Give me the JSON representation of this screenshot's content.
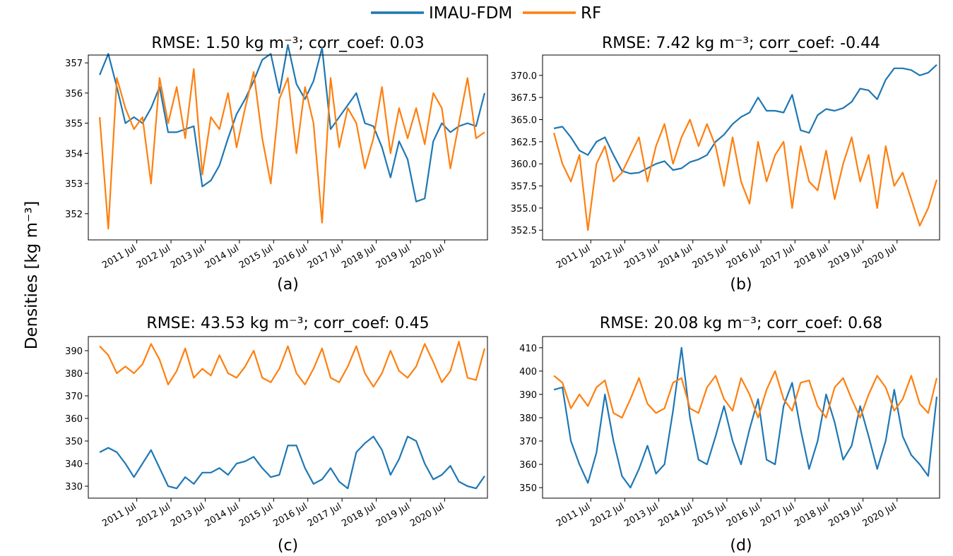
{
  "ylabel": "Densities [kg m⁻³]",
  "chart_data": [
    {
      "type": "line",
      "title": "RMSE: 1.50 kg m⁻³; corr_coef: 0.03",
      "caption": "(a)",
      "x": [
        "2010-06",
        "2010-09",
        "2010-12",
        "2011-03",
        "2011-06",
        "2011-09",
        "2011-12",
        "2012-03",
        "2012-06",
        "2012-09",
        "2012-12",
        "2013-03",
        "2013-06",
        "2013-09",
        "2013-12",
        "2014-03",
        "2014-06",
        "2014-09",
        "2014-12",
        "2015-03",
        "2015-06",
        "2015-09",
        "2015-12",
        "2016-03",
        "2016-06",
        "2016-09",
        "2016-12",
        "2017-03",
        "2017-06",
        "2017-09",
        "2017-12",
        "2018-03",
        "2018-06",
        "2018-09",
        "2018-12",
        "2019-03",
        "2019-06",
        "2019-09",
        "2019-12",
        "2020-03",
        "2020-06",
        "2020-09",
        "2020-12",
        "2021-03",
        "2021-06",
        "2021-09"
      ],
      "xlim": [
        "2010-02",
        "2021-10"
      ],
      "xticks": [
        {
          "value": "2011-07",
          "label": "2011 Jul"
        },
        {
          "value": "2012-07",
          "label": "2012 Jul"
        },
        {
          "value": "2013-07",
          "label": "2013 Jul"
        },
        {
          "value": "2014-07",
          "label": "2014 Jul"
        },
        {
          "value": "2015-07",
          "label": "2015 Jul"
        },
        {
          "value": "2016-07",
          "label": "2016 Jul"
        },
        {
          "value": "2017-07",
          "label": "2017 Jul"
        },
        {
          "value": "2018-07",
          "label": "2018 Jul"
        },
        {
          "value": "2019-07",
          "label": "2019 Jul"
        },
        {
          "value": "2020-07",
          "label": "2020 Jul"
        }
      ],
      "ylim": [
        351.13,
        357.26
      ],
      "yticks": [
        352,
        353,
        354,
        355,
        356,
        357
      ],
      "series": [
        {
          "name": "IMAU-FDM",
          "color": "#1f77b4",
          "values": [
            356.6,
            357.3,
            356.2,
            355.0,
            355.2,
            355.0,
            355.5,
            356.2,
            354.7,
            354.7,
            354.8,
            354.9,
            352.9,
            353.1,
            353.6,
            354.5,
            355.3,
            355.8,
            356.4,
            357.1,
            357.3,
            356.0,
            357.6,
            356.3,
            355.8,
            356.4,
            357.5,
            354.8,
            355.2,
            355.6,
            356.0,
            355.0,
            354.9,
            354.2,
            353.2,
            354.4,
            353.8,
            352.4,
            352.5,
            354.4,
            355.0,
            354.7,
            354.9,
            355.0,
            354.9,
            356.0
          ]
        },
        {
          "name": "RF",
          "color": "#ff7f0e",
          "values": [
            355.2,
            351.5,
            356.5,
            355.5,
            354.8,
            355.2,
            353.0,
            356.5,
            355.0,
            356.2,
            354.5,
            356.8,
            353.3,
            355.2,
            354.8,
            356.0,
            354.2,
            355.5,
            356.7,
            354.5,
            353.0,
            355.8,
            356.5,
            354.0,
            356.2,
            355.0,
            351.7,
            356.5,
            354.2,
            355.5,
            355.0,
            353.5,
            354.5,
            356.2,
            354.0,
            355.5,
            354.5,
            355.5,
            354.3,
            356.0,
            355.5,
            353.5,
            355.0,
            356.5,
            354.5,
            354.7
          ]
        }
      ]
    },
    {
      "type": "line",
      "title": "RMSE: 7.42 kg m⁻³; corr_coef: -0.44",
      "caption": "(b)",
      "x": [
        "2010-06",
        "2010-09",
        "2010-12",
        "2011-03",
        "2011-06",
        "2011-09",
        "2011-12",
        "2012-03",
        "2012-06",
        "2012-09",
        "2012-12",
        "2013-03",
        "2013-06",
        "2013-09",
        "2013-12",
        "2014-03",
        "2014-06",
        "2014-09",
        "2014-12",
        "2015-03",
        "2015-06",
        "2015-09",
        "2015-12",
        "2016-03",
        "2016-06",
        "2016-09",
        "2016-12",
        "2017-03",
        "2017-06",
        "2017-09",
        "2017-12",
        "2018-03",
        "2018-06",
        "2018-09",
        "2018-12",
        "2019-03",
        "2019-06",
        "2019-09",
        "2019-12",
        "2020-03",
        "2020-06",
        "2020-09",
        "2020-12",
        "2021-03",
        "2021-06",
        "2021-09"
      ],
      "xlim": [
        "2010-02",
        "2021-10"
      ],
      "xticks": [
        {
          "value": "2011-07",
          "label": "2011 Jul"
        },
        {
          "value": "2012-07",
          "label": "2012 Jul"
        },
        {
          "value": "2013-07",
          "label": "2013 Jul"
        },
        {
          "value": "2014-07",
          "label": "2014 Jul"
        },
        {
          "value": "2015-07",
          "label": "2015 Jul"
        },
        {
          "value": "2016-07",
          "label": "2016 Jul"
        },
        {
          "value": "2017-07",
          "label": "2017 Jul"
        },
        {
          "value": "2018-07",
          "label": "2018 Jul"
        },
        {
          "value": "2019-07",
          "label": "2019 Jul"
        },
        {
          "value": "2020-07",
          "label": "2020 Jul"
        }
      ],
      "ylim": [
        351.4,
        372.3
      ],
      "yticks": [
        352.5,
        {
          "value": 355,
          "label": "355.0"
        },
        357.5,
        {
          "value": 360,
          "label": "360.0"
        },
        362.5,
        {
          "value": 365,
          "label": "365.0"
        },
        367.5,
        {
          "value": 370,
          "label": "370.0"
        }
      ],
      "series": [
        {
          "name": "IMAU-FDM",
          "color": "#1f77b4",
          "values": [
            364.0,
            364.2,
            363.0,
            361.5,
            361.0,
            362.5,
            363.0,
            361.0,
            359.2,
            358.9,
            359.0,
            359.5,
            360.0,
            360.3,
            359.3,
            359.5,
            360.2,
            360.5,
            361.0,
            362.5,
            363.3,
            364.5,
            365.3,
            365.8,
            367.5,
            366.0,
            366.0,
            365.8,
            367.8,
            363.8,
            363.5,
            365.5,
            366.2,
            366.0,
            366.3,
            367.0,
            368.5,
            368.3,
            367.3,
            369.5,
            370.8,
            370.8,
            370.6,
            370.0,
            370.3,
            371.2
          ]
        },
        {
          "name": "RF",
          "color": "#ff7f0e",
          "values": [
            363.5,
            360,
            358,
            361,
            352.5,
            360,
            362,
            358,
            359,
            361,
            363,
            358,
            362,
            364.5,
            360,
            363,
            365,
            362,
            364.5,
            362,
            357.5,
            363,
            358,
            355.5,
            362.5,
            358,
            361,
            362.5,
            355,
            362,
            358,
            357,
            361.5,
            356,
            360,
            363,
            358,
            361,
            355,
            362,
            357.5,
            359,
            356,
            353,
            355,
            358.2
          ]
        }
      ]
    },
    {
      "type": "line",
      "title": "RMSE: 43.53 kg m⁻³; corr_coef: 0.45",
      "caption": "(c)",
      "x": [
        "2010-06",
        "2010-09",
        "2010-12",
        "2011-03",
        "2011-06",
        "2011-09",
        "2011-12",
        "2012-03",
        "2012-06",
        "2012-09",
        "2012-12",
        "2013-03",
        "2013-06",
        "2013-09",
        "2013-12",
        "2014-03",
        "2014-06",
        "2014-09",
        "2014-12",
        "2015-03",
        "2015-06",
        "2015-09",
        "2015-12",
        "2016-03",
        "2016-06",
        "2016-09",
        "2016-12",
        "2017-03",
        "2017-06",
        "2017-09",
        "2017-12",
        "2018-03",
        "2018-06",
        "2018-09",
        "2018-12",
        "2019-03",
        "2019-06",
        "2019-09",
        "2019-12",
        "2020-03",
        "2020-06",
        "2020-09",
        "2020-12",
        "2021-03",
        "2021-06",
        "2021-09"
      ],
      "xlim": [
        "2010-02",
        "2021-10"
      ],
      "xticks": [
        {
          "value": "2011-07",
          "label": "2011 Jul"
        },
        {
          "value": "2012-07",
          "label": "2012 Jul"
        },
        {
          "value": "2013-07",
          "label": "2013 Jul"
        },
        {
          "value": "2014-07",
          "label": "2014 Jul"
        },
        {
          "value": "2015-07",
          "label": "2015 Jul"
        },
        {
          "value": "2016-07",
          "label": "2016 Jul"
        },
        {
          "value": "2017-07",
          "label": "2017 Jul"
        },
        {
          "value": "2018-07",
          "label": "2018 Jul"
        },
        {
          "value": "2019-07",
          "label": "2019 Jul"
        },
        {
          "value": "2020-07",
          "label": "2020 Jul"
        }
      ],
      "ylim": [
        324.7,
        396.25
      ],
      "yticks": [
        330,
        340,
        350,
        360,
        370,
        380,
        390
      ],
      "series": [
        {
          "name": "IMAU-FDM",
          "color": "#1f77b4",
          "values": [
            345,
            347,
            345,
            340,
            334,
            340,
            346,
            338,
            330,
            329,
            334,
            331,
            336,
            336,
            338,
            335,
            340,
            341,
            343,
            338,
            334,
            335,
            348,
            348,
            338,
            331,
            333,
            338,
            332,
            329,
            345,
            349,
            352,
            346,
            335,
            342,
            352,
            350,
            340,
            333,
            335,
            339,
            332,
            330,
            329,
            334.5
          ]
        },
        {
          "name": "RF",
          "color": "#ff7f0e",
          "values": [
            392,
            388,
            380,
            383,
            380,
            384,
            393,
            386,
            375,
            381,
            391,
            378,
            382,
            379,
            388,
            380,
            378,
            383,
            390,
            378,
            376,
            382,
            392,
            380,
            375,
            382,
            391,
            378,
            376,
            383,
            392,
            380,
            374,
            380,
            390,
            381,
            378,
            383,
            393,
            385,
            376,
            381,
            394,
            378,
            377,
            391
          ]
        }
      ]
    },
    {
      "type": "line",
      "title": "RMSE: 20.08 kg m⁻³; corr_coef: 0.68",
      "caption": "(d)",
      "x": [
        "2010-06",
        "2010-09",
        "2010-12",
        "2011-03",
        "2011-06",
        "2011-09",
        "2011-12",
        "2012-03",
        "2012-06",
        "2012-09",
        "2012-12",
        "2013-03",
        "2013-06",
        "2013-09",
        "2013-12",
        "2014-03",
        "2014-06",
        "2014-09",
        "2014-12",
        "2015-03",
        "2015-06",
        "2015-09",
        "2015-12",
        "2016-03",
        "2016-06",
        "2016-09",
        "2016-12",
        "2017-03",
        "2017-06",
        "2017-09",
        "2017-12",
        "2018-03",
        "2018-06",
        "2018-09",
        "2018-12",
        "2019-03",
        "2019-06",
        "2019-09",
        "2019-12",
        "2020-03",
        "2020-06",
        "2020-09",
        "2020-12",
        "2021-03",
        "2021-06",
        "2021-09"
      ],
      "xlim": [
        "2010-02",
        "2021-10"
      ],
      "xticks": [
        {
          "value": "2011-07",
          "label": "2011 Jul"
        },
        {
          "value": "2012-07",
          "label": "2012 Jul"
        },
        {
          "value": "2013-07",
          "label": "2013 Jul"
        },
        {
          "value": "2014-07",
          "label": "2014 Jul"
        },
        {
          "value": "2015-07",
          "label": "2015 Jul"
        },
        {
          "value": "2016-07",
          "label": "2016 Jul"
        },
        {
          "value": "2017-07",
          "label": "2017 Jul"
        },
        {
          "value": "2018-07",
          "label": "2018 Jul"
        },
        {
          "value": "2019-07",
          "label": "2019 Jul"
        },
        {
          "value": "2020-07",
          "label": "2020 Jul"
        }
      ],
      "ylim": [
        345.5,
        414.8
      ],
      "yticks": [
        350,
        360,
        370,
        380,
        390,
        400,
        410
      ],
      "series": [
        {
          "name": "IMAU-FDM",
          "color": "#1f77b4",
          "values": [
            392,
            393,
            370,
            360,
            352,
            365,
            390,
            370,
            355,
            350,
            358,
            368,
            356,
            360,
            383,
            410,
            380,
            362,
            360,
            372,
            385,
            370,
            360,
            375,
            388,
            362,
            360,
            385,
            395,
            375,
            358,
            370,
            390,
            378,
            362,
            368,
            385,
            372,
            358,
            370,
            392,
            372,
            364,
            360,
            355,
            389
          ]
        },
        {
          "name": "RF",
          "color": "#ff7f0e",
          "values": [
            398,
            395,
            384,
            390,
            385,
            393,
            396,
            382,
            380,
            388,
            397,
            386,
            382,
            384,
            395,
            397,
            384,
            382,
            393,
            398,
            388,
            383,
            397,
            390,
            380,
            392,
            400,
            388,
            383,
            395,
            396,
            385,
            380,
            393,
            397,
            388,
            380,
            390,
            398,
            393,
            383,
            388,
            398,
            386,
            382,
            397
          ]
        }
      ]
    }
  ]
}
